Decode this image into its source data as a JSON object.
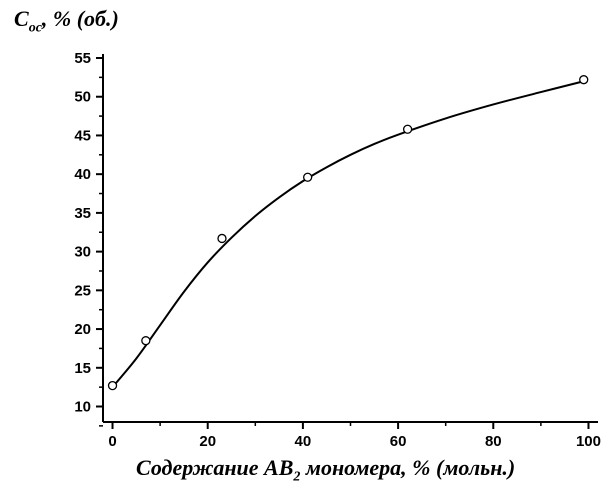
{
  "chart_data": {
    "type": "scatter",
    "ylabel": {
      "symbol": "C",
      "subscript": "ос",
      "rest": ", % (об.)"
    },
    "xlabel": {
      "before": "Содержание AB",
      "subscript": "2",
      "after": " мономера, % (мольн.)"
    },
    "xlim": [
      -2,
      102
    ],
    "ylim": [
      8,
      55
    ],
    "x_ticks": [
      0,
      20,
      40,
      60,
      80,
      100
    ],
    "y_ticks": [
      10,
      15,
      20,
      25,
      30,
      35,
      40,
      45,
      50,
      55
    ],
    "grid": false,
    "series": [
      {
        "points": [
          {
            "x": 0,
            "y": 12.7
          },
          {
            "x": 7,
            "y": 18.5
          },
          {
            "x": 23,
            "y": 31.7
          },
          {
            "x": 41,
            "y": 39.6
          },
          {
            "x": 62,
            "y": 45.8
          },
          {
            "x": 99,
            "y": 52.2
          }
        ],
        "fit_curve": [
          [
            0,
            12.5
          ],
          [
            5,
            16.2
          ],
          [
            10,
            20.5
          ],
          [
            15,
            24.8
          ],
          [
            20,
            28.6
          ],
          [
            25,
            31.8
          ],
          [
            30,
            34.6
          ],
          [
            35,
            37.0
          ],
          [
            40,
            39.1
          ],
          [
            45,
            40.9
          ],
          [
            50,
            42.5
          ],
          [
            55,
            43.9
          ],
          [
            60,
            45.1
          ],
          [
            70,
            47.2
          ],
          [
            80,
            49.0
          ],
          [
            90,
            50.6
          ],
          [
            99,
            52.0
          ]
        ],
        "marker": "open-circle"
      }
    ]
  }
}
